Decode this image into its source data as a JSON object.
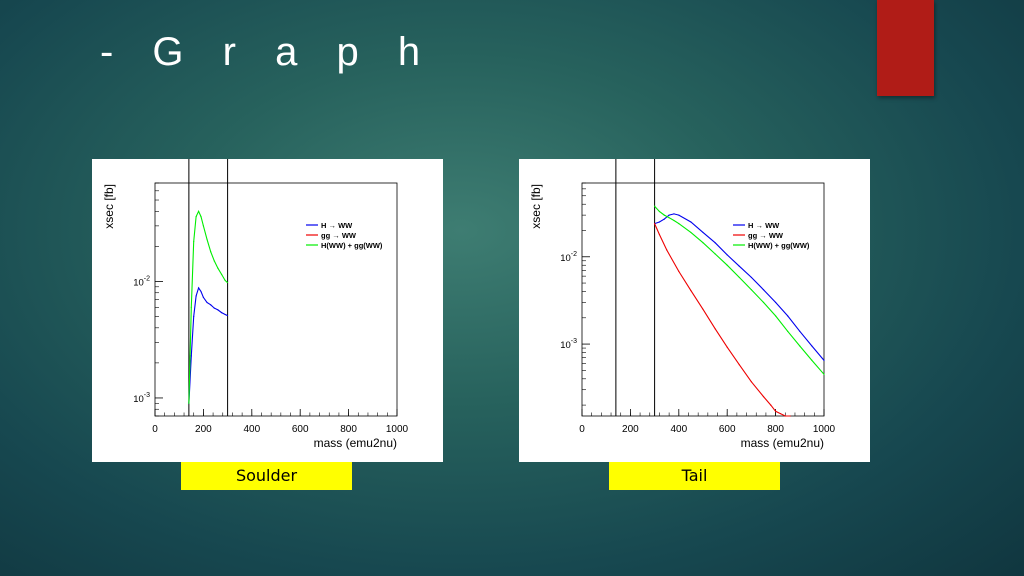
{
  "slide": {
    "title": "- G r a p h",
    "accent_color": "#b01c17"
  },
  "labels": {
    "left": "Soulder",
    "right": "Tail"
  },
  "chart_data": [
    {
      "type": "line",
      "xlabel": "mass (emu2nu)",
      "ylabel": "xsec [fb]",
      "xlim": [
        0,
        1000
      ],
      "ylim": [
        0.0007,
        0.07
      ],
      "yscale": "log",
      "x_ticks": [
        "0",
        "200",
        "400",
        "600",
        "800",
        "1000"
      ],
      "y_ticks": [
        {
          "base": "10",
          "exp": "-3",
          "value": 0.001
        },
        {
          "base": "10",
          "exp": "-2",
          "value": 0.01
        }
      ],
      "vlines": [
        140,
        300
      ],
      "legend_position": "top-right",
      "series": [
        {
          "name": "H → WW",
          "color": "#0000ee",
          "x": [
            140,
            150,
            160,
            170,
            180,
            190,
            200,
            215,
            230,
            245,
            260,
            275,
            290,
            299
          ],
          "y": [
            0.0009,
            0.0023,
            0.005,
            0.0075,
            0.0088,
            0.0082,
            0.0073,
            0.0066,
            0.0063,
            0.0059,
            0.0057,
            0.0054,
            0.0052,
            0.0051
          ]
        },
        {
          "name": "gg → WW",
          "color": "#ee0000",
          "x": [],
          "y": []
        },
        {
          "name": "H(WW) + gg(WW)",
          "color": "#00ee00",
          "x": [
            140,
            150,
            160,
            170,
            180,
            190,
            200,
            215,
            230,
            245,
            260,
            275,
            290,
            299
          ],
          "y": [
            0.0009,
            0.006,
            0.022,
            0.036,
            0.04,
            0.036,
            0.03,
            0.023,
            0.018,
            0.015,
            0.013,
            0.0115,
            0.0102,
            0.0098
          ]
        }
      ]
    },
    {
      "type": "line",
      "xlabel": "mass (emu2nu)",
      "ylabel": "xsec [fb]",
      "xlim": [
        0,
        1000
      ],
      "ylim": [
        0.00015,
        0.07
      ],
      "yscale": "log",
      "x_ticks": [
        "0",
        "200",
        "400",
        "600",
        "800",
        "1000"
      ],
      "y_ticks": [
        {
          "base": "10",
          "exp": "-3",
          "value": 0.001
        },
        {
          "base": "10",
          "exp": "-2",
          "value": 0.01
        }
      ],
      "vlines": [
        140,
        300
      ],
      "legend_position": "top-right",
      "series": [
        {
          "name": "H → WW",
          "color": "#0000ee",
          "x": [
            300,
            320,
            340,
            360,
            380,
            400,
            450,
            500,
            550,
            600,
            650,
            700,
            750,
            800,
            850,
            900,
            950,
            1000
          ],
          "y": [
            0.024,
            0.025,
            0.027,
            0.03,
            0.031,
            0.03,
            0.025,
            0.019,
            0.0145,
            0.0105,
            0.0078,
            0.0058,
            0.0042,
            0.003,
            0.0021,
            0.0014,
            0.00095,
            0.00065
          ]
        },
        {
          "name": "gg → WW",
          "color": "#ee0000",
          "x": [
            300,
            320,
            350,
            400,
            450,
            500,
            550,
            600,
            650,
            700,
            750,
            780,
            800,
            820,
            840,
            860
          ],
          "y": [
            0.024,
            0.018,
            0.012,
            0.0068,
            0.0041,
            0.0025,
            0.0015,
            0.00092,
            0.00058,
            0.00037,
            0.00025,
            0.0002,
            0.00017,
            0.00016,
            0.00015,
            0.00015
          ]
        },
        {
          "name": "H(WW) + gg(WW)",
          "color": "#00ee00",
          "x": [
            300,
            320,
            340,
            360,
            380,
            400,
            450,
            500,
            550,
            600,
            650,
            700,
            750,
            800,
            850,
            900,
            950,
            1000
          ],
          "y": [
            0.038,
            0.033,
            0.03,
            0.028,
            0.026,
            0.024,
            0.019,
            0.0145,
            0.0108,
            0.008,
            0.0058,
            0.0042,
            0.003,
            0.0021,
            0.0014,
            0.00095,
            0.00065,
            0.00045
          ]
        }
      ]
    }
  ]
}
